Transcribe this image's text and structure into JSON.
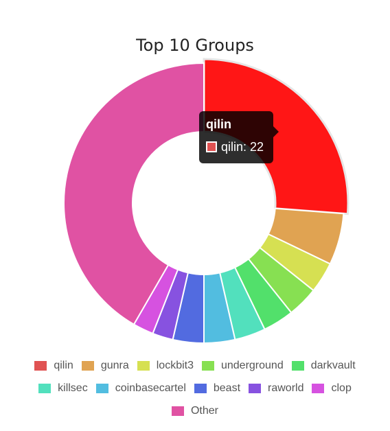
{
  "chart_data": {
    "type": "pie",
    "title": "Top 10 Groups",
    "categories": [
      "qilin",
      "gunra",
      "lockbit3",
      "underground",
      "darkvault",
      "killsec",
      "coinbasecartel",
      "beast",
      "raworld",
      "clop",
      "Other"
    ],
    "values": [
      22,
      5,
      3,
      3,
      3,
      3,
      3,
      3,
      2,
      2,
      35
    ],
    "colors": [
      "#e05252",
      "#e0a352",
      "#d6e052",
      "#87e052",
      "#52e06b",
      "#52e0bd",
      "#52bde0",
      "#526be0",
      "#8752e0",
      "#d652e0",
      "#e052a3"
    ],
    "legend": "bottom",
    "tooltip": {
      "title": "qilin",
      "text": "qilin: 22",
      "hover_color": "#ff1616"
    }
  }
}
